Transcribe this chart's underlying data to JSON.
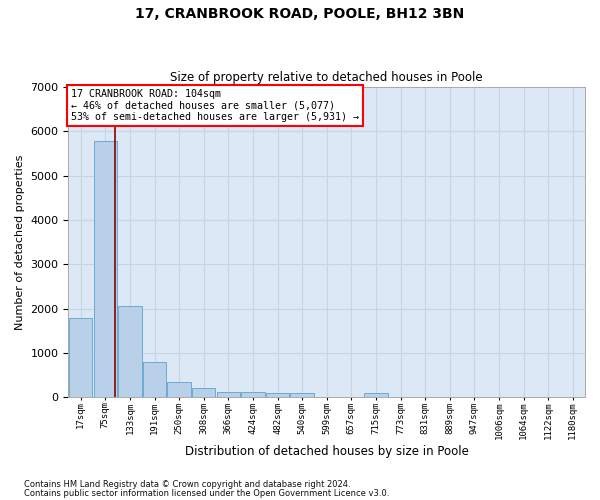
{
  "title1": "17, CRANBROOK ROAD, POOLE, BH12 3BN",
  "title2": "Size of property relative to detached houses in Poole",
  "xlabel": "Distribution of detached houses by size in Poole",
  "ylabel": "Number of detached properties",
  "footnote1": "Contains HM Land Registry data © Crown copyright and database right 2024.",
  "footnote2": "Contains public sector information licensed under the Open Government Licence v3.0.",
  "annotation_line1": "17 CRANBROOK ROAD: 104sqm",
  "annotation_line2": "← 46% of detached houses are smaller (5,077)",
  "annotation_line3": "53% of semi-detached houses are larger (5,931) →",
  "bar_labels": [
    "17sqm",
    "75sqm",
    "133sqm",
    "191sqm",
    "250sqm",
    "308sqm",
    "366sqm",
    "424sqm",
    "482sqm",
    "540sqm",
    "599sqm",
    "657sqm",
    "715sqm",
    "773sqm",
    "831sqm",
    "889sqm",
    "947sqm",
    "1006sqm",
    "1064sqm",
    "1122sqm",
    "1180sqm"
  ],
  "bar_values": [
    1780,
    5780,
    2060,
    800,
    340,
    200,
    120,
    110,
    95,
    90,
    0,
    0,
    100,
    0,
    0,
    0,
    0,
    0,
    0,
    0,
    0
  ],
  "bar_color": "#b8d0e8",
  "bar_edge_color": "#6aaad4",
  "vline_x": 1.38,
  "vline_color": "#8b0000",
  "ylim": [
    0,
    7000
  ],
  "yticks": [
    0,
    1000,
    2000,
    3000,
    4000,
    5000,
    6000,
    7000
  ],
  "grid_color": "#c5d5e8",
  "bg_color": "#dce8f5"
}
